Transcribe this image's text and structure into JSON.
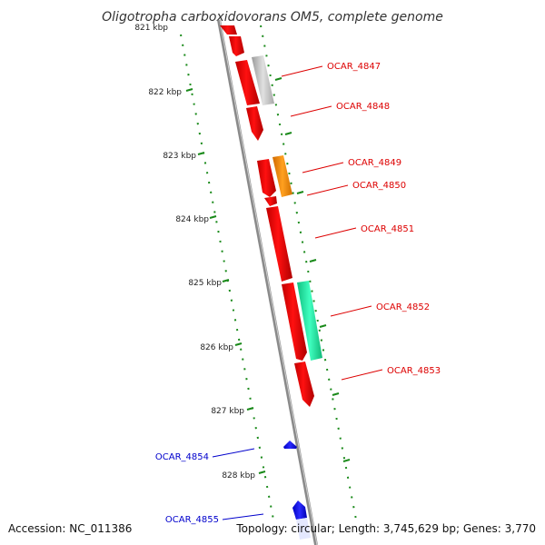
{
  "title": "Oligotropha carboxidovorans OM5, complete genome",
  "accession": "Accession: NC_011386",
  "summary": "Topology: circular; Length: 3,745,629 bp; Genes: 3,770",
  "kbp_ticks": [
    "821 kbp",
    "822 kbp",
    "823 kbp",
    "824 kbp",
    "825 kbp",
    "826 kbp",
    "827 kbp",
    "828 kbp"
  ],
  "gene_labels_forward": [
    "OCAR_4847",
    "OCAR_4848",
    "OCAR_4849",
    "OCAR_4850",
    "OCAR_4851",
    "OCAR_4852",
    "OCAR_4853"
  ],
  "gene_labels_reverse": [
    "OCAR_4854",
    "OCAR_4855"
  ],
  "colors": {
    "forward_gene": "#ff0000",
    "reverse_gene": "#0000e0",
    "label_forward": "#dd0000",
    "label_reverse": "#0000cc",
    "feature_gray": "#c0c0c0",
    "feature_orange": "#ff8c00",
    "feature_green": "#20e8a0",
    "ruler": "#1a8a1a",
    "backbone": "#8a8a8a"
  }
}
